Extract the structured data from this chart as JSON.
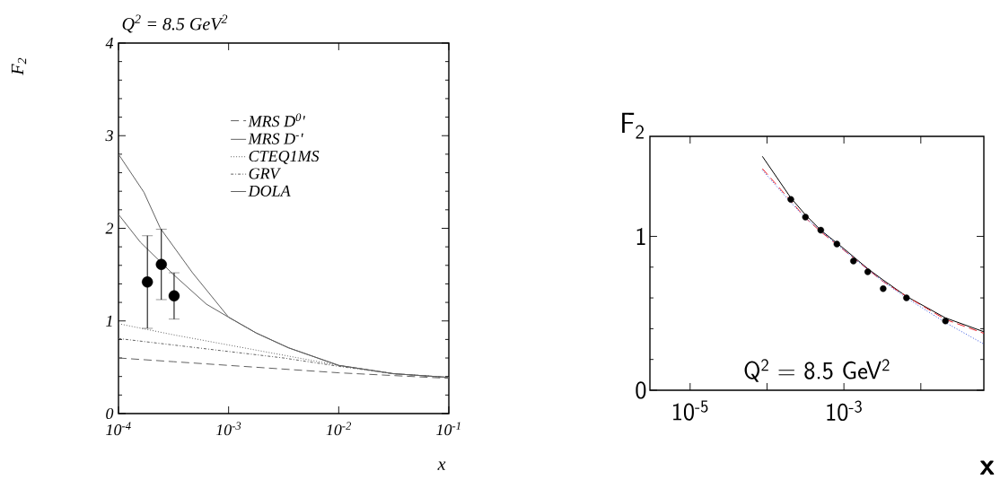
{
  "chart_data": [
    {
      "type": "line",
      "title": "Q$^{2}$ = 8.5 GeV$^{2}$",
      "xlabel": "x",
      "ylabel": "F$_{2}$",
      "log": "x",
      "legend": "top right",
      "xlim": [
        0.0001,
        0.1
      ],
      "ylim": [
        0,
        4
      ],
      "xticks": [
        {
          "value": 0.0001,
          "label": "10$^{-4}$"
        },
        {
          "value": 0.001,
          "label": "10$^{-3}$"
        },
        {
          "value": 0.01,
          "label": "10$^{-2}$"
        },
        {
          "value": 0.1,
          "label": "10$^{-1}$"
        }
      ],
      "yticks": [
        0,
        1,
        2,
        3,
        4
      ],
      "series": [
        {
          "name": "MRS D$^{0}$'",
          "color": "#606060",
          "line_style": "dashed",
          "x": [
            0.0001,
            0.000316,
            0.001,
            0.00316,
            0.01,
            0.0316,
            0.1
          ],
          "values": [
            0.6,
            0.56,
            0.52,
            0.48,
            0.44,
            0.41,
            0.38
          ]
        },
        {
          "name": "MRS D$^{-}$'",
          "color": "#606060",
          "line_style": "solid",
          "x": [
            0.0001,
            0.000158,
            0.000316,
            0.00063,
            0.001,
            0.00178,
            0.0035,
            0.01,
            0.0316,
            0.1
          ],
          "values": [
            2.15,
            1.85,
            1.5,
            1.18,
            1.04,
            0.87,
            0.71,
            0.52,
            0.43,
            0.39
          ]
        },
        {
          "name": "CTEQ1MS",
          "color": "#606060",
          "line_style": "dotted",
          "x": [
            0.0001,
            0.000316,
            0.001,
            0.00316,
            0.01,
            0.0316,
            0.1
          ],
          "values": [
            0.97,
            0.85,
            0.74,
            0.63,
            0.52,
            0.43,
            0.39
          ]
        },
        {
          "name": "GRV",
          "color": "#606060",
          "line_style": "dashdot",
          "x": [
            0.0001,
            0.000316,
            0.001,
            0.00316,
            0.01,
            0.0316,
            0.1
          ],
          "values": [
            0.81,
            0.74,
            0.67,
            0.6,
            0.51,
            0.43,
            0.39
          ]
        },
        {
          "name": "DOLA",
          "color": "#606060",
          "line_style": "solid",
          "x": [
            0.0001,
            0.00017,
            0.00024,
            0.00047,
            0.001,
            0.00178,
            0.0035,
            0.01,
            0.0316,
            0.1
          ],
          "values": [
            2.8,
            2.39,
            2.0,
            1.52,
            1.04,
            0.87,
            0.71,
            0.52,
            0.43,
            0.39
          ]
        },
        {
          "type": "scatter",
          "color": "#000000",
          "x": [
            0.000183,
            0.000245,
            0.00032
          ],
          "values": [
            1.42,
            1.61,
            1.27
          ],
          "errors": [
            0.5,
            0.38,
            0.25
          ]
        }
      ]
    },
    {
      "type": "line",
      "xlabel": "x",
      "ylabel": "F$_{2}$",
      "log": "x",
      "annotations": [
        "Q$^{2}$ = 8.5 GeV$^{2}$"
      ],
      "xlim": [
        3e-06,
        0.066
      ],
      "ylim": [
        0,
        1.65
      ],
      "xticks": [
        {
          "value": 1e-05,
          "label": "10$^{-5}$"
        },
        {
          "value": 0.0001,
          "label": null
        },
        {
          "value": 0.001,
          "label": "10$^{-3}$"
        },
        {
          "value": 0.01,
          "label": null
        }
      ],
      "yticks": [
        0,
        1
      ],
      "series": [
        {
          "color": "#000000",
          "line_style": "solid",
          "x": [
            8.7e-05,
            0.000204,
            0.000316,
            0.0005,
            0.001,
            0.00204,
            0.00316,
            0.0065,
            0.0209,
            0.066
          ],
          "values": [
            1.52,
            1.25,
            1.14,
            1.04,
            0.92,
            0.79,
            0.72,
            0.61,
            0.47,
            0.38
          ]
        },
        {
          "color": "#e8202a",
          "line_style": "dashed",
          "x": [
            8.7e-05,
            0.000204,
            0.000316,
            0.0005,
            0.001,
            0.00316,
            0.0065,
            0.0209,
            0.066
          ],
          "values": [
            1.44,
            1.23,
            1.12,
            1.03,
            0.91,
            0.71,
            0.61,
            0.46,
            0.37
          ]
        },
        {
          "color": "#3050e0",
          "line_style": "dotted",
          "x": [
            8.7e-05,
            0.000204,
            0.000316,
            0.001,
            0.00316,
            0.0065,
            0.0209,
            0.066
          ],
          "values": [
            1.43,
            1.22,
            1.12,
            0.91,
            0.71,
            0.6,
            0.44,
            0.3
          ]
        },
        {
          "type": "scatter",
          "color": "#000000",
          "x": [
            0.000204,
            0.000316,
            0.0005,
            0.00081,
            0.00133,
            0.00204,
            0.00324,
            0.0065,
            0.0209
          ],
          "values": [
            1.24,
            1.125,
            1.04,
            0.95,
            0.84,
            0.77,
            0.66,
            0.6,
            0.45
          ]
        }
      ]
    }
  ]
}
